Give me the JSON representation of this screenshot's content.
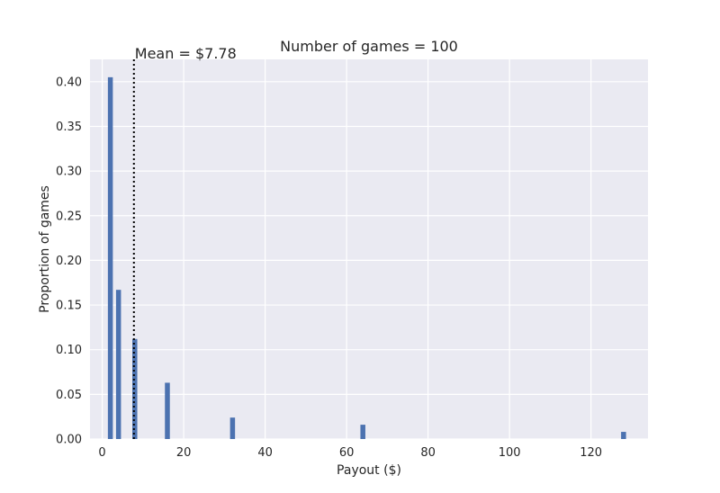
{
  "chart_data": {
    "type": "bar",
    "title": "Number of games = 100",
    "xlabel": "Payout ($)",
    "ylabel": "Proportion of games",
    "xlim": [
      -3,
      134
    ],
    "ylim": [
      0,
      0.425
    ],
    "xticks": [
      0,
      20,
      40,
      60,
      80,
      100,
      120
    ],
    "yticks": [
      0.0,
      0.05,
      0.1,
      0.15,
      0.2,
      0.25,
      0.3,
      0.35,
      0.4
    ],
    "ytick_labels": [
      "0.00",
      "0.05",
      "0.10",
      "0.15",
      "0.20",
      "0.25",
      "0.30",
      "0.35",
      "0.40"
    ],
    "grid": true,
    "bar_color": "#4c72b0",
    "bars": [
      {
        "x": 2,
        "value": 0.405
      },
      {
        "x": 4,
        "value": 0.167
      },
      {
        "x": 8,
        "value": 0.112
      },
      {
        "x": 16,
        "value": 0.063
      },
      {
        "x": 32,
        "value": 0.024
      },
      {
        "x": 64,
        "value": 0.016
      },
      {
        "x": 128,
        "value": 0.008
      }
    ],
    "mean_line": {
      "x": 7.78,
      "label": "Mean = $7.78",
      "style": "dotted",
      "color": "#000000"
    }
  }
}
